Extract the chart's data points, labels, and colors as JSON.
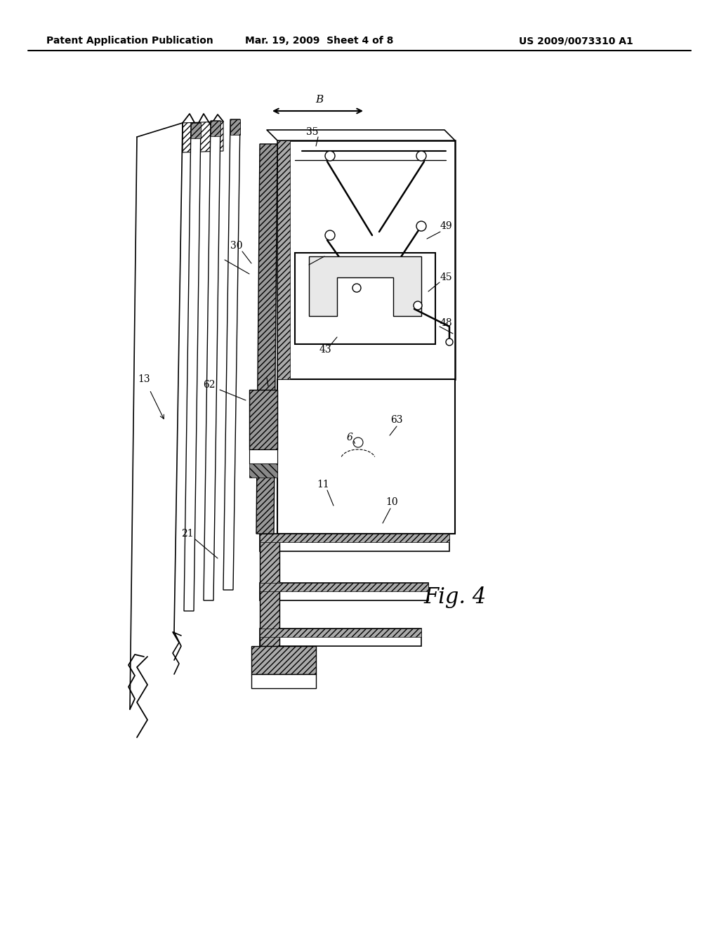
{
  "header_left": "Patent Application Publication",
  "header_mid": "Mar. 19, 2009  Sheet 4 of 8",
  "header_right": "US 2009/0073310 A1",
  "fig_label": "Fig. 4",
  "background_color": "#ffffff"
}
